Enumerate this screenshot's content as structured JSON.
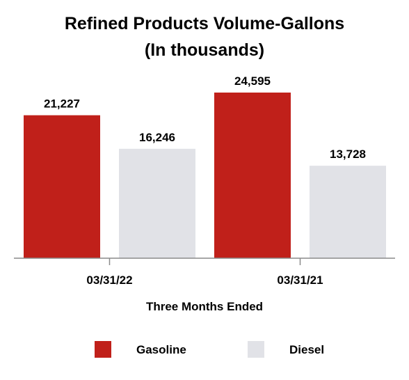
{
  "chart_data": {
    "type": "bar",
    "title_lines": [
      "Refined Products Volume-Gallons",
      "(In thousands)"
    ],
    "categories": [
      "03/31/22",
      "03/31/21"
    ],
    "series": [
      {
        "name": "Gasoline",
        "values": [
          21227,
          24595
        ],
        "labels": [
          "21,227",
          "24,595"
        ],
        "color": "#c0201a"
      },
      {
        "name": "Diesel",
        "values": [
          16246,
          13728
        ],
        "labels": [
          "16,246",
          "13,728"
        ],
        "color": "#e1e2e7"
      }
    ],
    "xlabel": "Three Months Ended",
    "ylabel": "",
    "ylim": [
      0,
      24595
    ],
    "grid": false,
    "legend_position": "bottom"
  }
}
